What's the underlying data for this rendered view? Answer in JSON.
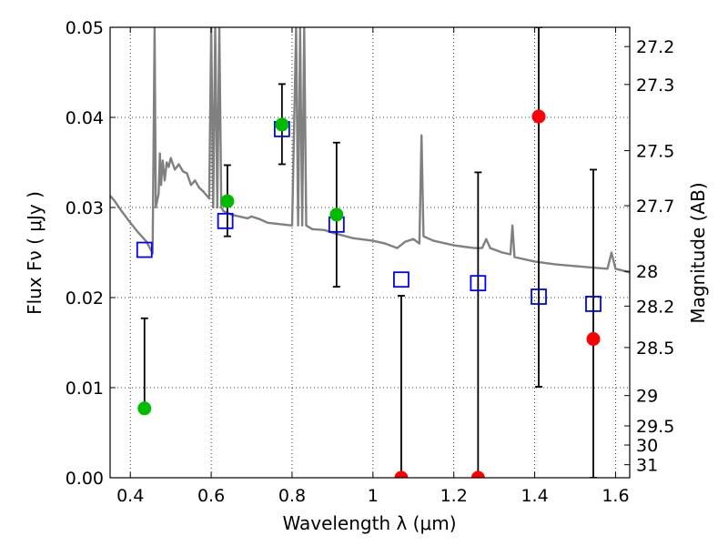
{
  "chart_data": {
    "type": "scatter",
    "xlabel": "Wavelength  λ (μm)",
    "ylabel": "Flux  Fν  ( μJy )",
    "ylabel_right": "Magnitude (AB)",
    "xlim": [
      0.35,
      1.635
    ],
    "ylim": [
      0.0,
      0.05
    ],
    "grid": true,
    "x_ticks": [
      "0.4",
      "0.6",
      "0.8",
      "1",
      "1.2",
      "1.4",
      "1.6"
    ],
    "x_tick_values": [
      0.4,
      0.6,
      0.8,
      1.0,
      1.2,
      1.4,
      1.6
    ],
    "y_ticks": [
      "0.00",
      "0.01",
      "0.02",
      "0.03",
      "0.04",
      "0.05"
    ],
    "y_tick_values": [
      0.0,
      0.01,
      0.02,
      0.03,
      0.04,
      0.05
    ],
    "right_ticks": [
      {
        "label": "27.2",
        "mag": 27.2
      },
      {
        "label": "27.3",
        "mag": 27.3
      },
      {
        "label": "27.5",
        "mag": 27.5
      },
      {
        "label": "27.7",
        "mag": 27.7
      },
      {
        "label": "28",
        "mag": 28.0
      },
      {
        "label": "28.2",
        "mag": 28.2
      },
      {
        "label": "28.5",
        "mag": 28.5
      },
      {
        "label": "29",
        "mag": 29.0
      },
      {
        "label": "29.5",
        "mag": 29.5
      },
      {
        "label": "30",
        "mag": 30.0
      },
      {
        "label": "31",
        "mag": 31.0
      }
    ],
    "colors": {
      "model": "#808080",
      "model_phot": "#0000ff",
      "detection": "#00bb00",
      "non_detection": "#ff0000",
      "errorbar": "#000000"
    },
    "model_spectrum": [
      [
        0.35,
        0.0313
      ],
      [
        0.36,
        0.0308
      ],
      [
        0.38,
        0.0295
      ],
      [
        0.4,
        0.0283
      ],
      [
        0.42,
        0.0272
      ],
      [
        0.44,
        0.0262
      ],
      [
        0.455,
        0.0249
      ],
      [
        0.46,
        0.05
      ],
      [
        0.463,
        0.03
      ],
      [
        0.47,
        0.0315
      ],
      [
        0.473,
        0.036
      ],
      [
        0.476,
        0.0325
      ],
      [
        0.48,
        0.0352
      ],
      [
        0.485,
        0.033
      ],
      [
        0.49,
        0.035
      ],
      [
        0.495,
        0.0345
      ],
      [
        0.5,
        0.0355
      ],
      [
        0.51,
        0.0342
      ],
      [
        0.52,
        0.0348
      ],
      [
        0.53,
        0.034
      ],
      [
        0.54,
        0.0338
      ],
      [
        0.55,
        0.0325
      ],
      [
        0.56,
        0.033
      ],
      [
        0.57,
        0.0322
      ],
      [
        0.58,
        0.0318
      ],
      [
        0.595,
        0.031
      ],
      [
        0.6,
        0.05
      ],
      [
        0.605,
        0.03
      ],
      [
        0.61,
        0.05
      ],
      [
        0.615,
        0.03
      ],
      [
        0.62,
        0.05
      ],
      [
        0.625,
        0.03
      ],
      [
        0.63,
        0.0296
      ],
      [
        0.65,
        0.0292
      ],
      [
        0.67,
        0.029
      ],
      [
        0.69,
        0.0288
      ],
      [
        0.7,
        0.029
      ],
      [
        0.72,
        0.0287
      ],
      [
        0.74,
        0.0283
      ],
      [
        0.76,
        0.0282
      ],
      [
        0.78,
        0.0281
      ],
      [
        0.8,
        0.028
      ],
      [
        0.81,
        0.05
      ],
      [
        0.815,
        0.028
      ],
      [
        0.82,
        0.05
      ],
      [
        0.825,
        0.028
      ],
      [
        0.83,
        0.05
      ],
      [
        0.835,
        0.028
      ],
      [
        0.85,
        0.0276
      ],
      [
        0.88,
        0.0275
      ],
      [
        0.9,
        0.0272
      ],
      [
        0.95,
        0.0266
      ],
      [
        1.0,
        0.0263
      ],
      [
        1.03,
        0.026
      ],
      [
        1.06,
        0.0255
      ],
      [
        1.08,
        0.0262
      ],
      [
        1.1,
        0.0265
      ],
      [
        1.115,
        0.026
      ],
      [
        1.12,
        0.038
      ],
      [
        1.125,
        0.0268
      ],
      [
        1.15,
        0.0263
      ],
      [
        1.2,
        0.0258
      ],
      [
        1.25,
        0.0255
      ],
      [
        1.27,
        0.0255
      ],
      [
        1.28,
        0.0265
      ],
      [
        1.29,
        0.0255
      ],
      [
        1.32,
        0.025
      ],
      [
        1.34,
        0.0248
      ],
      [
        1.345,
        0.028
      ],
      [
        1.35,
        0.0245
      ],
      [
        1.4,
        0.024
      ],
      [
        1.45,
        0.0237
      ],
      [
        1.5,
        0.0235
      ],
      [
        1.55,
        0.0233
      ],
      [
        1.58,
        0.0232
      ],
      [
        1.59,
        0.025
      ],
      [
        1.6,
        0.0232
      ],
      [
        1.635,
        0.0228
      ]
    ],
    "model_photometry": [
      {
        "x": 0.435,
        "y": 0.0253
      },
      {
        "x": 0.635,
        "y": 0.0285
      },
      {
        "x": 0.775,
        "y": 0.0387
      },
      {
        "x": 0.91,
        "y": 0.0281
      },
      {
        "x": 1.07,
        "y": 0.022
      },
      {
        "x": 1.26,
        "y": 0.0216
      },
      {
        "x": 1.41,
        "y": 0.0201
      },
      {
        "x": 1.545,
        "y": 0.0193
      }
    ],
    "observations": [
      {
        "x": 0.435,
        "y": 0.0077,
        "err_low": 0.0077,
        "err_high": 0.0177,
        "status": "detection"
      },
      {
        "x": 0.64,
        "y": 0.0307,
        "err_low": 0.0268,
        "err_high": 0.0347,
        "status": "detection"
      },
      {
        "x": 0.775,
        "y": 0.0392,
        "err_low": 0.0348,
        "err_high": 0.0437,
        "status": "detection"
      },
      {
        "x": 0.91,
        "y": 0.0292,
        "err_low": 0.0212,
        "err_high": 0.0372,
        "status": "detection"
      },
      {
        "x": 1.07,
        "y": 0.0,
        "err_low": 0.0,
        "err_high": 0.0202,
        "status": "non_detection"
      },
      {
        "x": 1.26,
        "y": 0.0,
        "err_low": 0.0,
        "err_high": 0.0339,
        "status": "non_detection"
      },
      {
        "x": 1.41,
        "y": 0.0401,
        "err_low": 0.0101,
        "err_high": 0.05,
        "status": "non_detection"
      },
      {
        "x": 1.545,
        "y": 0.0154,
        "err_low": 0.0,
        "err_high": 0.0342,
        "status": "non_detection"
      }
    ]
  }
}
